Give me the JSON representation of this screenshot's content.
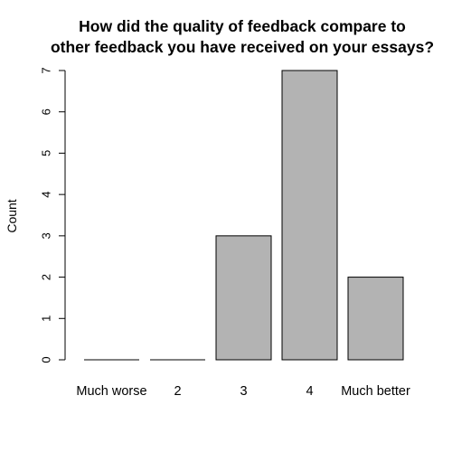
{
  "chart_data": {
    "type": "bar",
    "title_lines": [
      "How did the quality of feedback compare to",
      "other feedback you have received on your essays?"
    ],
    "xlabel": "",
    "ylabel": "Count",
    "categories": [
      "Much worse",
      "2",
      "3",
      "4",
      "Much better"
    ],
    "values": [
      0,
      0,
      3,
      7,
      2
    ],
    "ylim": [
      0,
      7
    ],
    "yticks": [
      0,
      1,
      2,
      3,
      4,
      5,
      6,
      7
    ],
    "grid": false,
    "legend": "none",
    "colors": {
      "bar_fill": "#b3b3b3",
      "bar_stroke": "#000000",
      "axis": "#000000"
    }
  }
}
